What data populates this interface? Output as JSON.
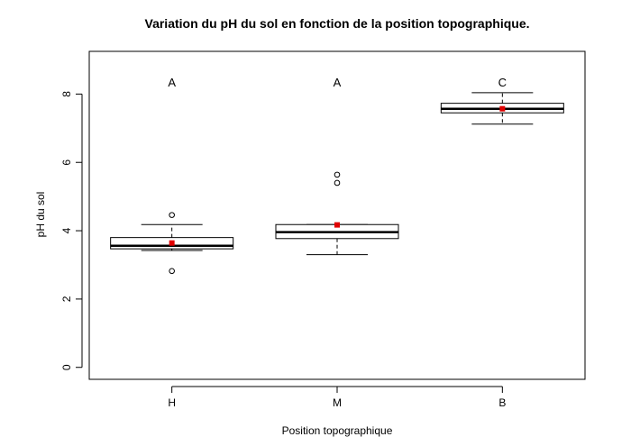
{
  "chart_data": {
    "type": "box",
    "title": "Variation du pH du sol en fonction de la position topographique.",
    "xlabel": "Position topographique",
    "ylabel": "pH du sol",
    "ylim": [
      -0.35,
      9.25
    ],
    "yticks": [
      0,
      2,
      4,
      6,
      8
    ],
    "categories": [
      "H",
      "M",
      "B"
    ],
    "group_letters": [
      "A",
      "A",
      "C"
    ],
    "mean_color": "#e00000",
    "boxes": [
      {
        "category": "H",
        "whisker_low": 3.42,
        "q1": 3.47,
        "median": 3.56,
        "q3": 3.8,
        "whisker_high": 4.18,
        "mean": 3.64,
        "outliers": [
          4.46,
          2.82
        ]
      },
      {
        "category": "M",
        "whisker_low": 3.3,
        "q1": 3.77,
        "median": 3.96,
        "q3": 4.18,
        "whisker_high": 4.18,
        "mean": 4.17,
        "outliers": [
          5.64,
          5.4
        ]
      },
      {
        "category": "B",
        "whisker_low": 7.12,
        "q1": 7.45,
        "median": 7.57,
        "q3": 7.73,
        "whisker_high": 8.04,
        "mean": 7.57,
        "outliers": []
      }
    ],
    "grid": false,
    "legend": false
  }
}
